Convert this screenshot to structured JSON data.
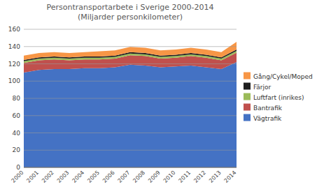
{
  "chart_data": {
    "type": "area",
    "stacked": true,
    "title": "Persontransportarbete i Sverige 2000-2014\n(Miljarder personkilometer)",
    "x": [
      2000,
      2001,
      2002,
      2003,
      2004,
      2005,
      2006,
      2007,
      2008,
      2009,
      2010,
      2011,
      2012,
      2013,
      2014
    ],
    "series": [
      {
        "name": "Vägtrafik",
        "color": "#4472C4",
        "values": [
          110,
          113,
          114,
          114,
          115,
          115,
          116,
          119,
          118,
          116,
          117,
          118,
          116,
          114,
          122
        ]
      },
      {
        "name": "Bantrafik",
        "color": "#C0504D",
        "values": [
          11,
          11,
          11,
          10,
          10,
          10,
          10,
          11,
          11,
          10,
          10,
          11,
          11,
          10,
          11
        ]
      },
      {
        "name": "Luftfart (inrikes)",
        "color": "#9BBB59",
        "values": [
          2,
          2,
          2,
          2,
          2,
          2,
          2,
          2,
          2,
          2,
          2,
          2,
          2,
          2,
          2
        ]
      },
      {
        "name": "Färjor",
        "color": "#1F1F1F",
        "values": [
          1.5,
          1.5,
          1.5,
          1.5,
          1.5,
          1.5,
          1.5,
          1.5,
          1.5,
          1.5,
          1.5,
          1.5,
          1.5,
          1.5,
          1.5
        ]
      },
      {
        "name": "Gång/Cykel/Moped",
        "color": "#F79646",
        "values": [
          5,
          5,
          5,
          5,
          5,
          6,
          6,
          6,
          6,
          6,
          6,
          6,
          6,
          6,
          9
        ]
      }
    ],
    "xlim": [
      2000,
      2014
    ],
    "xticks": [
      2000,
      2001,
      2002,
      2003,
      2004,
      2005,
      2006,
      2007,
      2008,
      2009,
      2010,
      2011,
      2012,
      2013,
      2014
    ],
    "ylim": [
      0,
      160
    ],
    "yticks": [
      0,
      20,
      40,
      60,
      80,
      100,
      120,
      140,
      160
    ],
    "grid": true,
    "legend": "right"
  }
}
